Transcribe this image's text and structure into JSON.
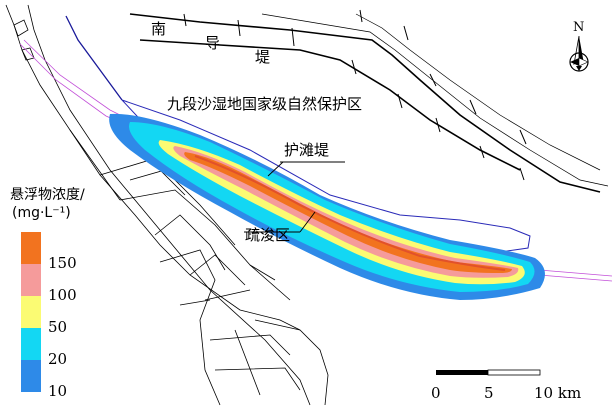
{
  "labels": {
    "south_dike": [
      "南",
      "导",
      "堤"
    ],
    "reserve": "九段沙湿地国家级自然保护区",
    "protect_dike": "护滩堤",
    "dredge_area": "疏浚区",
    "north": "N"
  },
  "legend": {
    "title_line1": "悬浮物浓度/",
    "title_line2": "(mg·L⁻¹)",
    "classes": [
      {
        "value": "150",
        "color": "#f2731f"
      },
      {
        "value": "100",
        "color": "#f59b9b"
      },
      {
        "value": "50",
        "color": "#fbfb73"
      },
      {
        "value": "20",
        "color": "#13d7f3"
      },
      {
        "value": "10",
        "color": "#2e8ae8"
      }
    ]
  },
  "scale_bar": {
    "ticks": [
      "0",
      "5",
      "10 km"
    ]
  }
}
